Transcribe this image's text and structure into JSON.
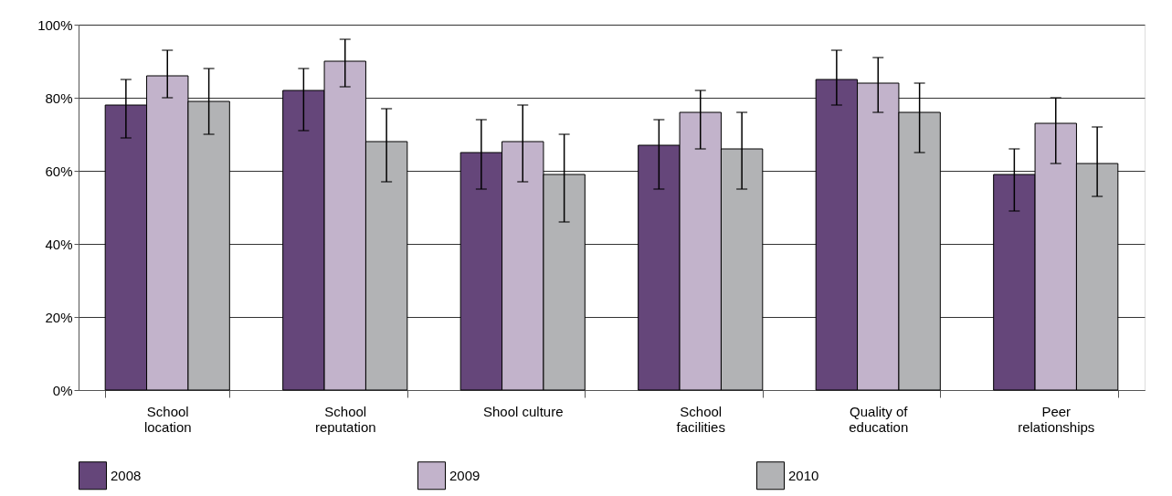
{
  "chart_data": {
    "type": "bar",
    "categories": [
      "School\nlocation",
      "School\nreputation",
      "Shool culture",
      "School\nfacilities",
      "Quality of\neducation",
      "Peer\nrelationships"
    ],
    "series": [
      {
        "name": "2008",
        "color": "#65467a",
        "values": [
          78,
          82,
          65,
          67,
          85,
          59
        ],
        "errors": [
          [
            69,
            85
          ],
          [
            71,
            88
          ],
          [
            55,
            74
          ],
          [
            55,
            74
          ],
          [
            78,
            93
          ],
          [
            49,
            66
          ]
        ]
      },
      {
        "name": "2009",
        "color": "#c2b3cb",
        "values": [
          86,
          90,
          68,
          76,
          84,
          73
        ],
        "errors": [
          [
            80,
            93
          ],
          [
            83,
            96
          ],
          [
            57,
            78
          ],
          [
            66,
            82
          ],
          [
            76,
            91
          ],
          [
            62,
            80
          ]
        ]
      },
      {
        "name": "2010",
        "color": "#b2b3b5",
        "values": [
          79,
          68,
          59,
          66,
          76,
          62
        ],
        "errors": [
          [
            70,
            88
          ],
          [
            57,
            77
          ],
          [
            46,
            70
          ],
          [
            55,
            76
          ],
          [
            65,
            84
          ],
          [
            53,
            72
          ]
        ]
      }
    ],
    "ylim": [
      0,
      100
    ],
    "yticks": [
      {
        "value": 0,
        "label": "0%"
      },
      {
        "value": 20,
        "label": "20%"
      },
      {
        "value": 40,
        "label": "40%"
      },
      {
        "value": 60,
        "label": "60%"
      },
      {
        "value": 80,
        "label": "80%"
      },
      {
        "value": 100,
        "label": "100%"
      }
    ],
    "grid": "y",
    "legend": "bottom"
  }
}
